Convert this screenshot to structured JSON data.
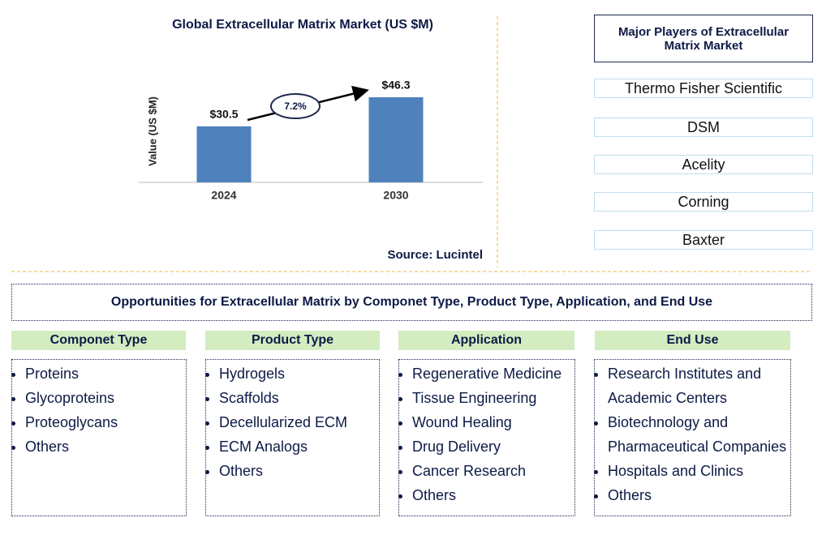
{
  "chart_data": {
    "type": "bar",
    "title": "Global Extracellular Matrix Market (US $M)",
    "y_label": "Value (US $M)",
    "categories": [
      "2024",
      "2030"
    ],
    "values": [
      30.5,
      46.3
    ],
    "value_labels": [
      "$30.5",
      "$46.3"
    ],
    "color": "#4f81bd",
    "annotation": "7.2%",
    "source": "Source: Lucintel"
  },
  "players": {
    "title": "Major Players of Extracellular Matrix Market",
    "items": [
      "Thermo Fisher Scientific",
      "DSM",
      "Acelity",
      "Corning",
      "Baxter"
    ]
  },
  "opportunities": {
    "title": "Opportunities for Extracellular Matrix by Componet Type, Product Type, Application, and End Use",
    "columns": [
      {
        "heading": "Componet Type",
        "items": [
          "Proteins",
          "Glycoproteins",
          "Proteoglycans",
          "Others"
        ]
      },
      {
        "heading": "Product Type",
        "items": [
          "Hydrogels",
          "Scaffolds",
          "Decellularized ECM",
          "ECM Analogs",
          "Others"
        ]
      },
      {
        "heading": "Application",
        "items": [
          "Regenerative Medicine",
          "Tissue Engineering",
          "Wound Healing",
          "Drug Delivery",
          "Cancer Research",
          "Others"
        ]
      },
      {
        "heading": "End Use",
        "items": [
          "Research Institutes and Academic Centers",
          "Biotechnology and Pharmaceutical Companies",
          "Hospitals and Clinics",
          "Others"
        ]
      }
    ]
  }
}
